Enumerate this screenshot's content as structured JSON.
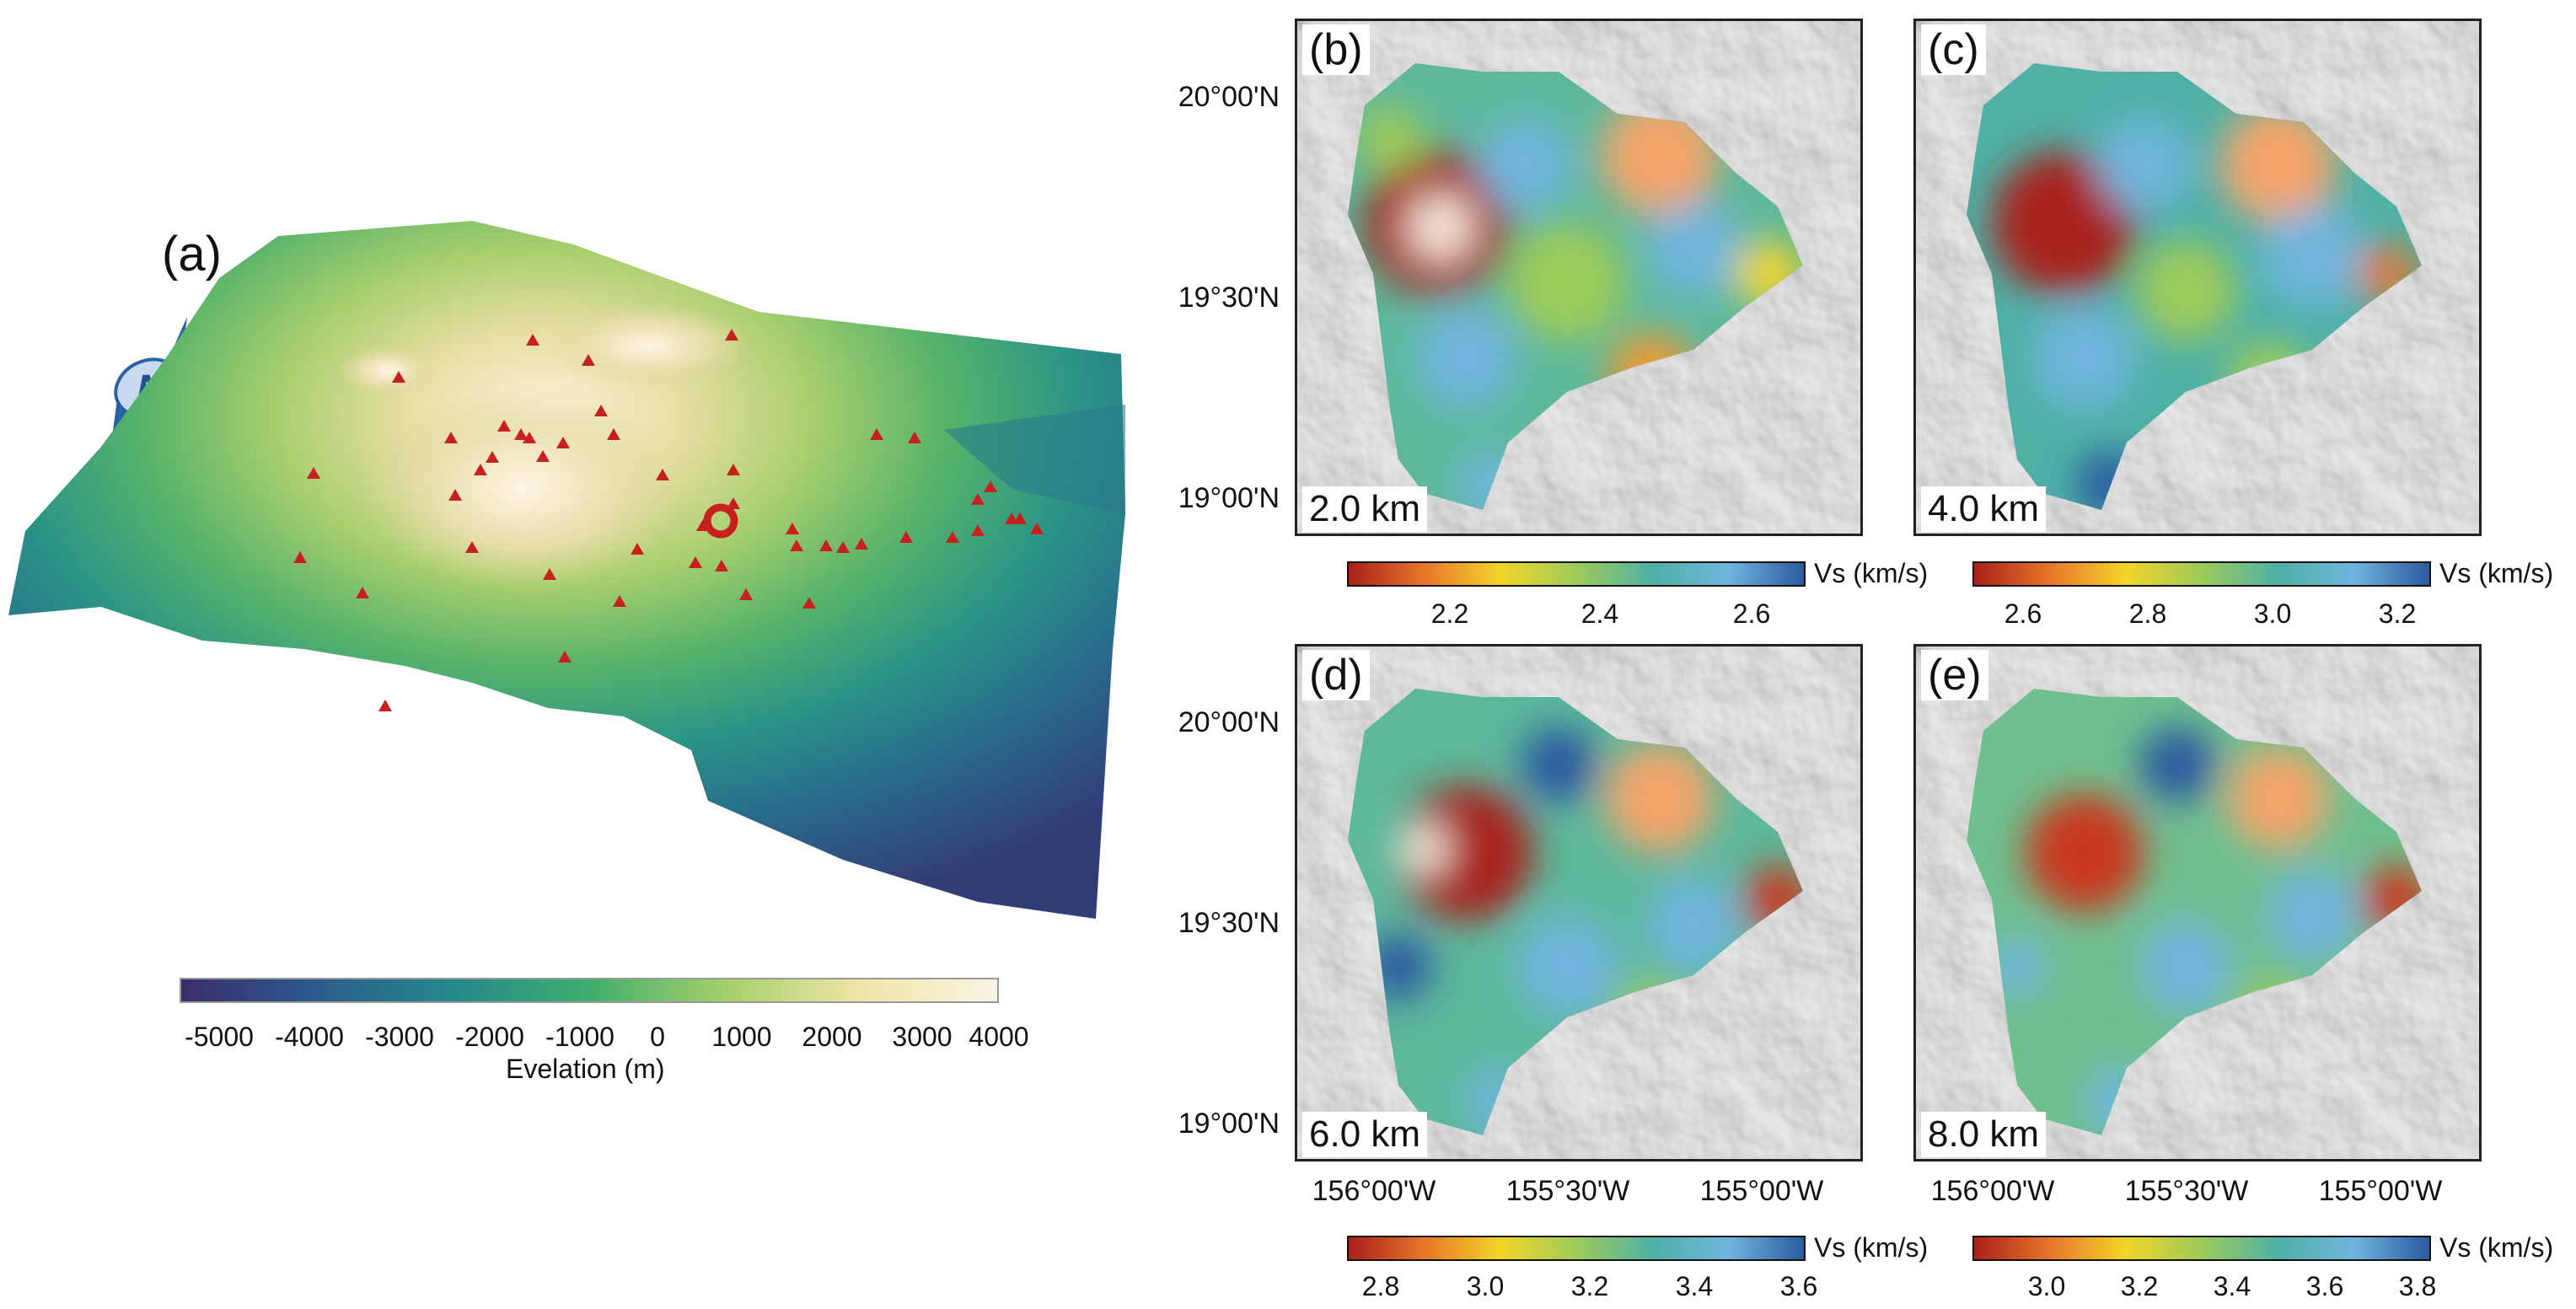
{
  "panel_a": {
    "label": "(a)",
    "compass": "N",
    "colorbar": {
      "ticks": [
        "-5000",
        "-4000",
        "-3000",
        "-2000",
        "-1000",
        "0",
        "1000",
        "2000",
        "3000",
        "4000"
      ],
      "title": "Evelation (m)",
      "colors": [
        "#3b2c6e",
        "#2c5b8c",
        "#23898b",
        "#3fae6c",
        "#a5cf6a",
        "#efe6a8",
        "#fbf3e6"
      ]
    }
  },
  "lat_labels": [
    "20°00'N",
    "19°30'N",
    "19°00'N"
  ],
  "lon_labels": [
    "156°00'W",
    "155°30'W",
    "155°00'W"
  ],
  "vs_colors": [
    "#a8201a",
    "#e8762a",
    "#f2d62a",
    "#9dcb5a",
    "#4fb1a6",
    "#6fb5de",
    "#2b5aa0"
  ],
  "panels": [
    {
      "tag": "(b)",
      "depth": "2.0 km",
      "cb_title": "Vs (km/s)",
      "ticks": [
        "2.2",
        "2.4",
        "2.6"
      ]
    },
    {
      "tag": "(c)",
      "depth": "4.0 km",
      "cb_title": "Vs (km/s)",
      "ticks": [
        "2.6",
        "2.8",
        "3.0",
        "3.2"
      ]
    },
    {
      "tag": "(d)",
      "depth": "6.0 km",
      "cb_title": "Vs (km/s)",
      "ticks": [
        "2.8",
        "3.0",
        "3.2",
        "3.4",
        "3.6"
      ]
    },
    {
      "tag": "(e)",
      "depth": "8.0 km",
      "cb_title": "Vs (km/s)",
      "ticks": [
        "3.0",
        "3.2",
        "3.4",
        "3.6",
        "3.8"
      ]
    }
  ]
}
